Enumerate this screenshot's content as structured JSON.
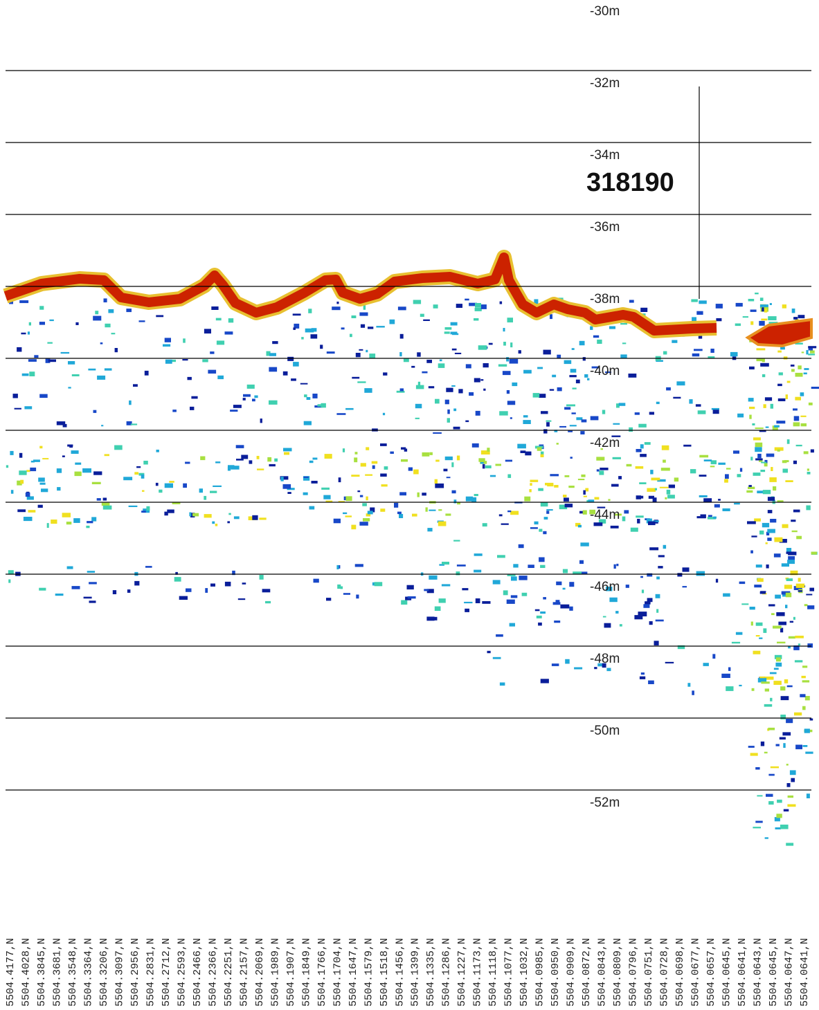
{
  "depth_labels": [
    "-30m",
    "-32m",
    "-34m",
    "-36m",
    "-38m",
    "-40m",
    "-42m",
    "-44m",
    "-46m",
    "-48m",
    "-50m",
    "-52m"
  ],
  "counter": "318190",
  "positions": [
    "5504.4177,N",
    "5504.4028,N",
    "5504.3845,N",
    "5504.3681,N",
    "5504.3548,N",
    "5504.3364,N",
    "5504.3206,N",
    "5504.3097,N",
    "5504.2956,N",
    "5504.2831,N",
    "5504.2712,N",
    "5504.2593,N",
    "5504.2466,N",
    "5504.2366,N",
    "5504.2251,N",
    "5504.2157,N",
    "5504.2069,N",
    "5504.1989,N",
    "5504.1907,N",
    "5504.1849,N",
    "5504.1766,N",
    "5504.1704,N",
    "5504.1647,N",
    "5504.1579,N",
    "5504.1518,N",
    "5504.1456,N",
    "5504.1399,N",
    "5504.1335,N",
    "5504.1286,N",
    "5504.1227,N",
    "5504.1173,N",
    "5504.1118,N",
    "5504.1077,N",
    "5504.1032,N",
    "5504.0985,N",
    "5504.0950,N",
    "5504.0909,N",
    "5504.0872,N",
    "5504.0843,N",
    "5504.0809,N",
    "5504.0796,N",
    "5504.0751,N",
    "5504.0728,N",
    "5504.0698,N",
    "5504.0677,N",
    "5504.0657,N",
    "5504.0645,N",
    "5504.0641,N",
    "5504.0643,N",
    "5504.0645,N",
    "5504.0647,N",
    "5504.0641,N"
  ]
}
